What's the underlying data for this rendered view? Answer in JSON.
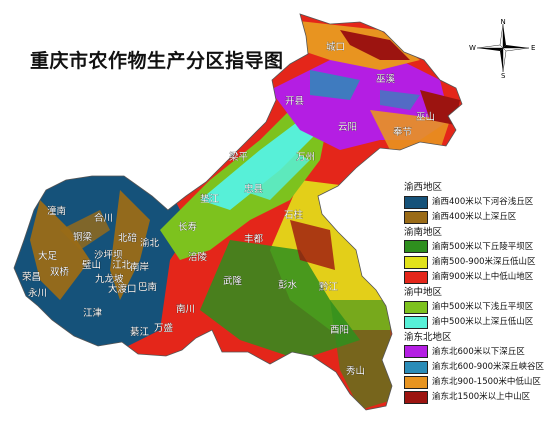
{
  "title": "重庆市农作物生产分区指导图",
  "compass": {
    "n": "N",
    "s": "S",
    "e": "E",
    "w": "W"
  },
  "cities": [
    "城口",
    "巫溪",
    "巫山",
    "开县",
    "云阳",
    "奉节",
    "梁平",
    "万州",
    "忠县",
    "垫江",
    "石柱",
    "长寿",
    "丰都",
    "潼南",
    "合川",
    "铜梁",
    "北碚",
    "渝北",
    "大足",
    "双桥",
    "璧山",
    "沙坪坝",
    "江北",
    "南岸",
    "荣昌",
    "永川",
    "九龙坡",
    "大渡口",
    "巴南",
    "涪陵",
    "武隆",
    "彭水",
    "黔江",
    "江津",
    "綦江",
    "万盛",
    "南川",
    "酉阳",
    "秀山"
  ],
  "legend": {
    "groups": [
      {
        "name": "渝西地区",
        "items": [
          {
            "label": "渝西400米以下河谷浅丘区",
            "color": "#15527a"
          },
          {
            "label": "渝西400米以上深丘区",
            "color": "#9a6b17"
          }
        ]
      },
      {
        "name": "渝南地区",
        "items": [
          {
            "label": "渝南500米以下丘陵平坝区",
            "color": "#2e8f1e"
          },
          {
            "label": "渝南500-900米深丘低山区",
            "color": "#e2e21a"
          },
          {
            "label": "渝南900米以上中低山地区",
            "color": "#e4261a"
          }
        ]
      },
      {
        "name": "渝中地区",
        "items": [
          {
            "label": "渝中500米以下浅丘平坝区",
            "color": "#7dc21e"
          },
          {
            "label": "渝中500米以上深丘低山区",
            "color": "#57f0d8"
          }
        ]
      },
      {
        "name": "渝东北地区",
        "items": [
          {
            "label": "渝东北600米以下深丘区",
            "color": "#b41ee3"
          },
          {
            "label": "渝东北600-900米深丘峡谷区",
            "color": "#2a8cb8"
          },
          {
            "label": "渝东北900-1500米中低山区",
            "color": "#e89420"
          },
          {
            "label": "渝东北1500米以上中山区",
            "color": "#9c1410"
          }
        ]
      }
    ]
  }
}
